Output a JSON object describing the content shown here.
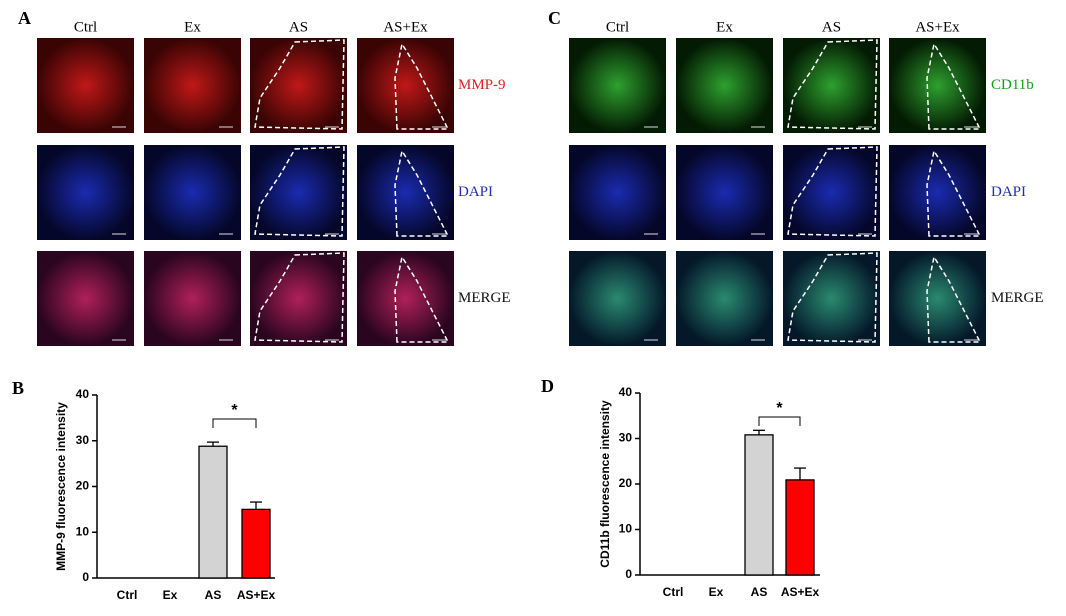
{
  "panels": [
    {
      "letter": "A",
      "columns": [
        "Ctrl",
        "Ex",
        "AS",
        "AS+Ex"
      ],
      "rows": [
        "MMP-9",
        "DAPI",
        "MERGE"
      ]
    },
    {
      "letter": "C",
      "columns": [
        "Ctrl",
        "Ex",
        "AS",
        "AS+Ex"
      ],
      "rows": [
        "CD11b",
        "DAPI",
        "MERGE"
      ]
    }
  ],
  "chart_data": [
    {
      "type": "bar",
      "panel": "B",
      "y_label": "MMP-9 fluorescence intensity",
      "categories": [
        "Ctrl",
        "Ex",
        "AS",
        "AS+Ex"
      ],
      "values": [
        null,
        null,
        28.8,
        15
      ],
      "errors": [
        null,
        null,
        0.9,
        1.6
      ],
      "colors": [
        "#d3d3d3",
        "#ff0000",
        "#d3d3d3",
        "#ff0000"
      ],
      "ylim": [
        0,
        40
      ],
      "yticks": [
        0,
        10,
        20,
        30,
        40
      ],
      "annotation": "*"
    },
    {
      "type": "bar",
      "panel": "D",
      "y_label": "CD11b fluorescence intensity",
      "categories": [
        "Ctrl",
        "Ex",
        "AS",
        "AS+Ex"
      ],
      "values": [
        null,
        null,
        30.8,
        20.9
      ],
      "errors": [
        null,
        null,
        1,
        2.6
      ],
      "colors": [
        "#d3d3d3",
        "#ff0000",
        "#d3d3d3",
        "#ff0000"
      ],
      "ylim": [
        0,
        40
      ],
      "yticks": [
        0,
        10,
        20,
        30,
        40
      ],
      "annotation": "*"
    }
  ]
}
